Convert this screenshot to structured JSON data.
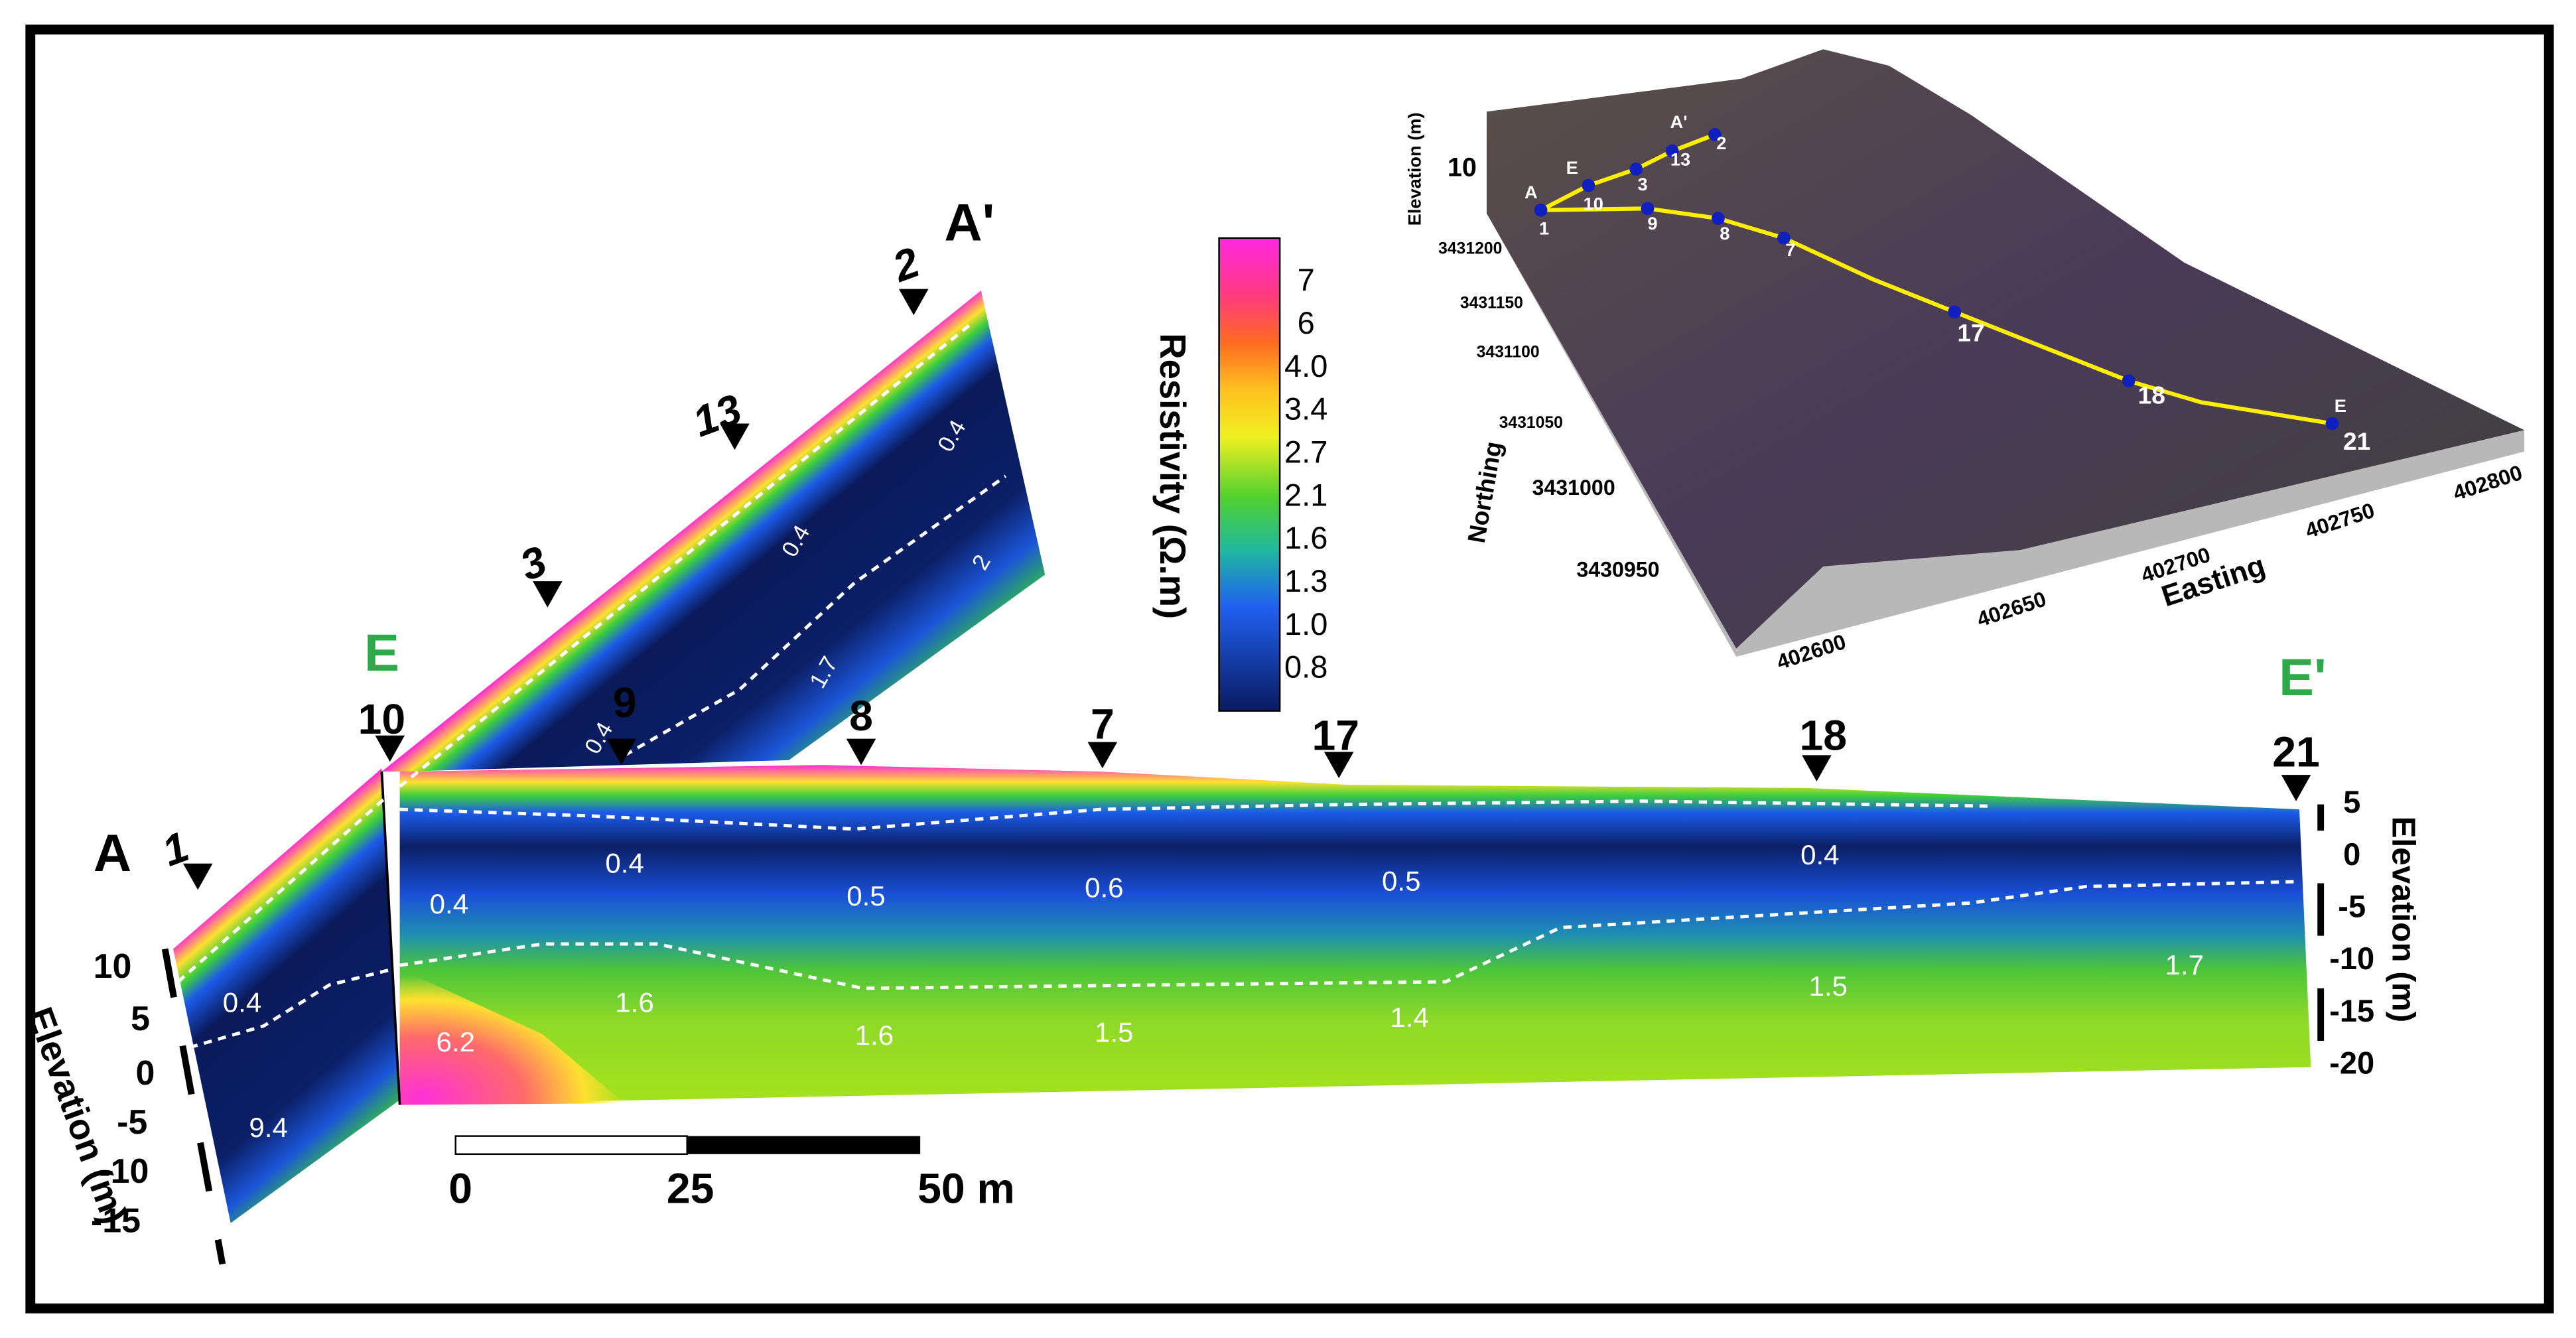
{
  "section_labels": [
    "A",
    "A'",
    "E",
    "E'"
  ],
  "stations": [
    "1",
    "10",
    "3",
    "13",
    "2",
    "9",
    "8",
    "7",
    "17",
    "18",
    "21"
  ],
  "resistivity_labels": [
    "0.4",
    "0.4",
    "2",
    "1.7",
    "0.4",
    "0.4",
    "9.4",
    "0.4",
    "0.4",
    "0.5",
    "0.6",
    "0.5",
    "0.4",
    "6.2",
    "1.6",
    "1.6",
    "1.5",
    "1.4",
    "1.5",
    "1.7"
  ],
  "colorbar": {
    "title": "Resistivity (Ω.m)",
    "ticks": [
      "7",
      "6",
      "4.0",
      "3.4",
      "2.7",
      "2.1",
      "1.6",
      "1.3",
      "1.0",
      "0.8"
    ]
  },
  "elevation_left": {
    "title": "Elevation (m)",
    "ticks": [
      "10",
      "5",
      "0",
      "-5",
      "-10",
      "-15"
    ]
  },
  "elevation_right": {
    "title": "Elevation (m)",
    "ticks": [
      "5",
      "0",
      "-5",
      "-10",
      "-15",
      "-20"
    ]
  },
  "scale_bar": {
    "ticks": [
      "0",
      "25",
      "50 m"
    ]
  },
  "map": {
    "elevation_title": "Elevation (m)",
    "elevation_tick": "10",
    "northing_title": "Northing",
    "northing_ticks": [
      "3431200",
      "3431150",
      "3431100",
      "3431050",
      "3431000",
      "3430950"
    ],
    "easting_title": "Easting",
    "easting_ticks": [
      "402600",
      "402650",
      "402700",
      "402750",
      "402800"
    ],
    "stations": [
      "1",
      "10",
      "3",
      "13",
      "2",
      "9",
      "8",
      "7",
      "17",
      "18",
      "21"
    ],
    "profile_labels": [
      "A",
      "E",
      "A'",
      "E"
    ]
  }
}
